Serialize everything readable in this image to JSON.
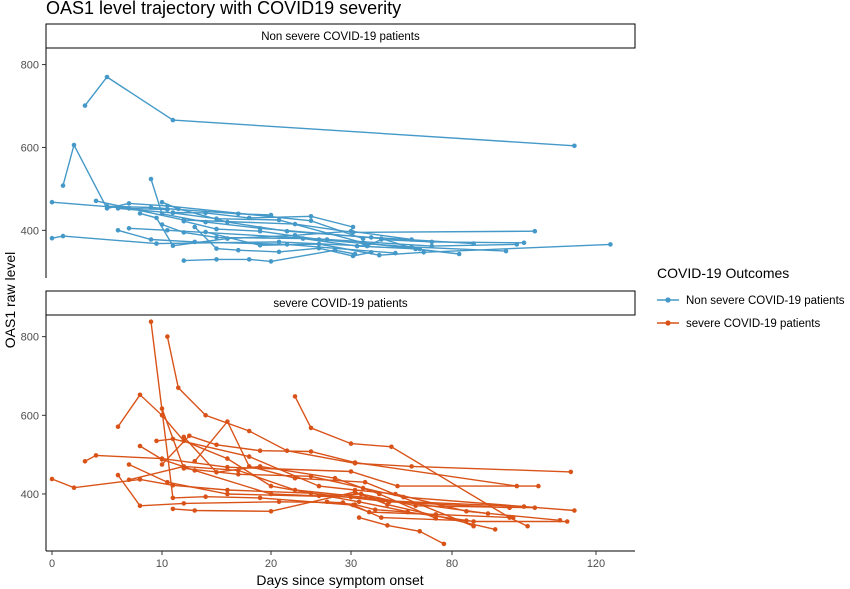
{
  "chart_data": {
    "type": "line",
    "title": "OAS1 level trajectory with COVID19 severity",
    "xlabel": "Days since symptom onset",
    "ylabel": "OAS1 raw level",
    "x_ticks": [
      "0",
      "10",
      "20",
      "30",
      "80",
      "120"
    ],
    "x_tick_days": [
      0,
      10,
      20,
      30,
      80,
      120
    ],
    "legend_title": "COVID-19 Outcomes",
    "legend_position": "right",
    "grid": false,
    "panels": [
      {
        "name": "Non severe COVID-19 patients",
        "color": "#4499c8",
        "ylim": [
          285,
          840
        ],
        "y_ticks": [
          400,
          600,
          800
        ],
        "patients": [
          [
            [
              0,
              468
            ],
            [
              7,
              453
            ],
            [
              10.5,
              450
            ]
          ],
          [
            [
              0,
              381
            ],
            [
              1,
              386
            ],
            [
              9.5,
              368
            ],
            [
              21,
              372
            ],
            [
              38,
              362
            ],
            [
              45,
              378
            ],
            [
              70,
              372
            ],
            [
              100,
              370
            ]
          ],
          [
            [
              1,
              508
            ],
            [
              2,
              606
            ],
            [
              5,
              453
            ],
            [
              7,
              465
            ],
            [
              10.5,
              459
            ],
            [
              25,
              423
            ],
            [
              36,
              380
            ]
          ],
          [
            [
              3,
              701
            ],
            [
              5,
              770
            ],
            [
              11,
              666
            ],
            [
              114,
              604
            ]
          ],
          [
            [
              4,
              471
            ],
            [
              12,
              425
            ],
            [
              23,
              415
            ],
            [
              31,
              395
            ],
            [
              103,
              398
            ]
          ],
          [
            [
              5,
              458
            ],
            [
              9,
              455
            ],
            [
              17,
              440
            ],
            [
              20,
              437
            ]
          ],
          [
            [
              6,
              453
            ],
            [
              11,
              442
            ],
            [
              15,
              428
            ],
            [
              21,
              425
            ],
            [
              36,
              370
            ],
            [
              82,
              343
            ]
          ],
          [
            [
              6,
              400
            ],
            [
              9,
              378
            ],
            [
              13,
              372
            ],
            [
              22,
              366
            ],
            [
              52,
              345
            ]
          ],
          [
            [
              7,
              405
            ],
            [
              10.5,
              400
            ],
            [
              27,
              378
            ],
            [
              70,
              362
            ],
            [
              98,
              366
            ]
          ],
          [
            [
              8,
              441
            ],
            [
              9.5,
              430
            ],
            [
              11,
              363
            ],
            [
              16,
              380
            ],
            [
              23,
              388
            ],
            [
              30,
              398
            ],
            [
              60,
              378
            ]
          ],
          [
            [
              9,
              524
            ],
            [
              10,
              440
            ],
            [
              14,
              420
            ],
            [
              19,
              405
            ],
            [
              45,
              380
            ],
            [
              62,
              355
            ]
          ],
          [
            [
              10,
              468
            ],
            [
              11.5,
              452
            ],
            [
              16,
              420
            ],
            [
              22,
              398
            ],
            [
              40,
              383
            ],
            [
              86,
              368
            ]
          ],
          [
            [
              10,
              414
            ],
            [
              12,
              395
            ],
            [
              15,
              383
            ],
            [
              24,
              380
            ],
            [
              33,
              362
            ],
            [
              64,
              355
            ]
          ],
          [
            [
              11,
              443
            ],
            [
              14,
              442
            ],
            [
              18,
              430
            ],
            [
              25,
              434
            ],
            [
              31,
              408
            ]
          ],
          [
            [
              12,
              422
            ],
            [
              15,
              403
            ],
            [
              19,
              398
            ],
            [
              26,
              378
            ],
            [
              37,
              368
            ],
            [
              60,
              360
            ],
            [
              95,
              350
            ]
          ],
          [
            [
              12,
              327
            ],
            [
              15,
              330
            ],
            [
              18,
              330
            ],
            [
              20,
              325
            ],
            [
              28,
              352
            ],
            [
              32,
              343
            ]
          ],
          [
            [
              13,
              408
            ],
            [
              15,
              356
            ],
            [
              17,
              352
            ],
            [
              21,
              348
            ],
            [
              26,
              357
            ],
            [
              31,
              338
            ],
            [
              40,
              347
            ]
          ],
          [
            [
              14,
              396
            ],
            [
              19,
              364
            ],
            [
              26,
              367
            ],
            [
              44,
              340
            ],
            [
              66,
              347
            ],
            [
              124,
              366
            ]
          ]
        ]
      },
      {
        "name": "severe COVID-19 patients",
        "color": "#d95319",
        "ylim": [
          255,
          855
        ],
        "y_ticks": [
          400,
          600,
          800
        ],
        "patients": [
          [
            [
              0,
              438
            ],
            [
              2,
              416
            ],
            [
              8,
              437
            ],
            [
              11,
              422
            ],
            [
              16,
              410
            ],
            [
              25,
              402
            ],
            [
              49,
              380
            ],
            [
              96,
              365
            ]
          ],
          [
            [
              3,
              483
            ],
            [
              4,
              498
            ],
            [
              10,
              490
            ],
            [
              16,
              468
            ],
            [
              30,
              457
            ],
            [
              53,
              420
            ],
            [
              104,
              420
            ]
          ],
          [
            [
              6,
              448
            ],
            [
              8,
              370
            ],
            [
              12,
              376
            ],
            [
              21,
              380
            ],
            [
              29,
              378
            ],
            [
              39,
              354
            ],
            [
              72,
              348
            ],
            [
              97,
              340
            ]
          ],
          [
            [
              6,
              571
            ],
            [
              8,
              652
            ],
            [
              10,
              600
            ],
            [
              12,
              535
            ],
            [
              16,
              490
            ],
            [
              20,
              420
            ],
            [
              34,
              380
            ],
            [
              58,
              355
            ]
          ],
          [
            [
              7,
              475
            ],
            [
              10.5,
              430
            ],
            [
              16,
              400
            ],
            [
              30,
              392
            ],
            [
              46,
              383
            ],
            [
              100,
              368
            ]
          ],
          [
            [
              7,
              436
            ],
            [
              12,
              470
            ],
            [
              17,
              460
            ],
            [
              23,
              410
            ],
            [
              40,
              390
            ],
            [
              90,
              350
            ]
          ],
          [
            [
              8,
              522
            ],
            [
              10,
              488
            ],
            [
              13,
              460
            ],
            [
              20,
              400
            ],
            [
              26,
              395
            ],
            [
              35,
              400
            ],
            [
              62,
              370
            ],
            [
              103,
              365
            ]
          ],
          [
            [
              9,
              838
            ],
            [
              11,
              390
            ],
            [
              14,
              393
            ],
            [
              19,
              390
            ],
            [
              31,
              372
            ],
            [
              45,
              340
            ],
            [
              84,
              332
            ]
          ],
          [
            [
              9.5,
              535
            ],
            [
              11,
              540
            ],
            [
              18,
              495
            ],
            [
              26,
              420
            ],
            [
              32,
              410
            ],
            [
              52,
              400
            ],
            [
              84,
              356
            ],
            [
              110,
              333
            ]
          ],
          [
            [
              10,
              617
            ],
            [
              12,
              465
            ],
            [
              17,
              450
            ],
            [
              25,
              445
            ],
            [
              36,
              415
            ],
            [
              56,
              392
            ],
            [
              114,
              358
            ]
          ],
          [
            [
              10,
              475
            ],
            [
              12.5,
              548
            ],
            [
              15,
              525
            ],
            [
              19,
              510
            ],
            [
              25,
              508
            ],
            [
              32,
              480
            ],
            [
              98,
              420
            ]
          ],
          [
            [
              10.5,
              800
            ],
            [
              11.5,
              670
            ],
            [
              14,
              600
            ],
            [
              18,
              560
            ],
            [
              22,
              510
            ],
            [
              32,
              478
            ],
            [
              60,
              470
            ],
            [
              113,
              456
            ]
          ],
          [
            [
              11,
              362
            ],
            [
              13,
              358
            ],
            [
              20,
              356
            ],
            [
              32,
              405
            ],
            [
              48,
              373
            ],
            [
              92,
              310
            ]
          ],
          [
            [
              12,
              545
            ],
            [
              15,
              455
            ],
            [
              19,
              470
            ],
            [
              28,
              440
            ],
            [
              44,
              400
            ],
            [
              72,
              338
            ]
          ],
          [
            [
              13,
              483
            ],
            [
              16,
              584
            ],
            [
              18,
              470
            ],
            [
              23,
              440
            ],
            [
              37,
              430
            ],
            [
              86,
              318
            ]
          ],
          [
            [
              23,
              648
            ],
            [
              25,
              568
            ],
            [
              30,
              528
            ],
            [
              50,
              520
            ],
            [
              96,
              340
            ],
            [
              101,
              318
            ]
          ],
          [
            [
              27,
              380
            ],
            [
              32,
              373
            ],
            [
              42,
              360
            ],
            [
              58,
              354
            ],
            [
              86,
              330
            ],
            [
              112,
              330
            ]
          ],
          [
            [
              34,
              340
            ],
            [
              48,
              320
            ],
            [
              64,
              305
            ],
            [
              76,
              273
            ]
          ]
        ]
      }
    ],
    "series": [
      {
        "name": "Non severe COVID-19 patients",
        "color": "#4499c8"
      },
      {
        "name": "severe COVID-19 patients",
        "color": "#d95319"
      }
    ]
  }
}
